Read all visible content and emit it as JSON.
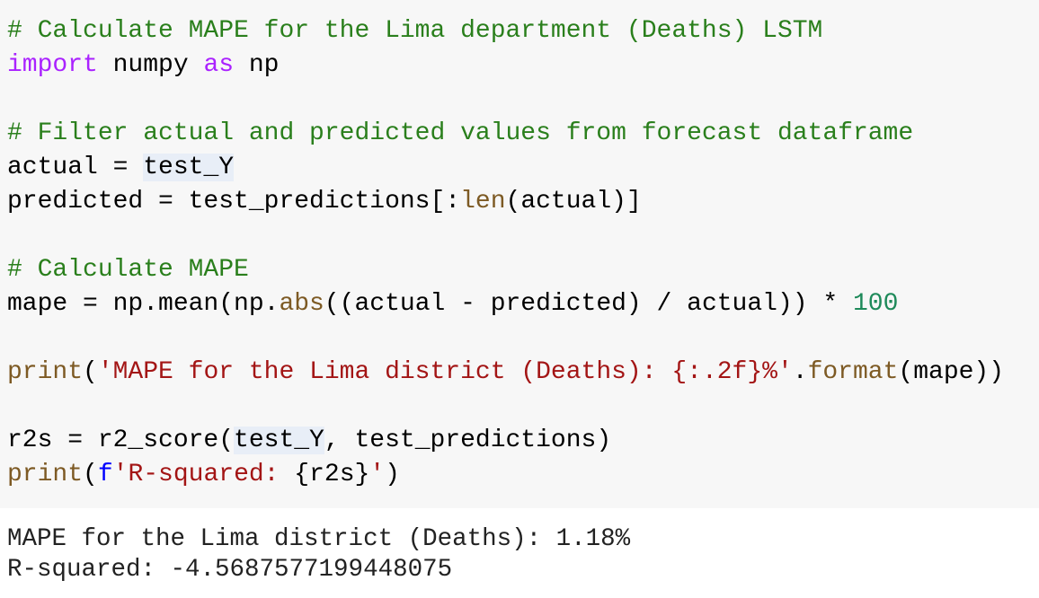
{
  "code_cell": {
    "background": "#f7f7f7",
    "lines": [
      {
        "tokens": [
          {
            "text": "# Calculate MAPE for the Lima department (Deaths) LSTM",
            "color": "#2a7f1c"
          }
        ]
      },
      {
        "tokens": [
          {
            "text": "import",
            "color": "#aa22ff"
          },
          {
            "text": " numpy ",
            "color": "#000000"
          },
          {
            "text": "as",
            "color": "#aa22ff"
          },
          {
            "text": " np",
            "color": "#000000"
          }
        ]
      },
      {
        "tokens": []
      },
      {
        "tokens": [
          {
            "text": "# Filter actual and predicted values from forecast dataframe",
            "color": "#2a7f1c"
          }
        ]
      },
      {
        "tokens": [
          {
            "text": "actual = ",
            "color": "#000000"
          },
          {
            "text": "test_Y",
            "color": "#000000",
            "background": "#e8eef7"
          }
        ]
      },
      {
        "tokens": [
          {
            "text": "predicted = test_predictions[:",
            "color": "#000000"
          },
          {
            "text": "len",
            "color": "#7d5a24"
          },
          {
            "text": "(actual)]",
            "color": "#000000"
          }
        ]
      },
      {
        "tokens": []
      },
      {
        "tokens": [
          {
            "text": "# Calculate MAPE",
            "color": "#2a7f1c"
          }
        ]
      },
      {
        "tokens": [
          {
            "text": "mape = np.mean(np.",
            "color": "#000000"
          },
          {
            "text": "abs",
            "color": "#7d5a24"
          },
          {
            "text": "((actual - predicted) / actual)) * ",
            "color": "#000000"
          },
          {
            "text": "100",
            "color": "#1e8a5a"
          }
        ]
      },
      {
        "tokens": []
      },
      {
        "tokens": [
          {
            "text": "print",
            "color": "#7d5a24"
          },
          {
            "text": "(",
            "color": "#000000"
          },
          {
            "text": "'MAPE for the Lima district (Deaths): {:.2f}%'",
            "color": "#a31515"
          },
          {
            "text": ".",
            "color": "#000000"
          },
          {
            "text": "format",
            "color": "#7d5a24"
          },
          {
            "text": "(mape))",
            "color": "#000000"
          }
        ]
      },
      {
        "tokens": []
      },
      {
        "tokens": [
          {
            "text": "r2s = r2_score(",
            "color": "#000000"
          },
          {
            "text": "test_Y",
            "color": "#000000",
            "background": "#e8eef7"
          },
          {
            "text": ", test_predictions)",
            "color": "#000000"
          }
        ]
      },
      {
        "tokens": [
          {
            "text": "print",
            "color": "#7d5a24"
          },
          {
            "text": "(",
            "color": "#000000"
          },
          {
            "text": "f",
            "color": "#0000ff"
          },
          {
            "text": "'R-squared: ",
            "color": "#a31515"
          },
          {
            "text": "{r2s}",
            "color": "#000000"
          },
          {
            "text": "'",
            "color": "#a31515"
          },
          {
            "text": ")",
            "color": "#000000"
          }
        ]
      }
    ]
  },
  "output": {
    "lines": [
      "MAPE for the Lima district (Deaths): 1.18%",
      "R-squared: -4.5687577199448075"
    ]
  }
}
